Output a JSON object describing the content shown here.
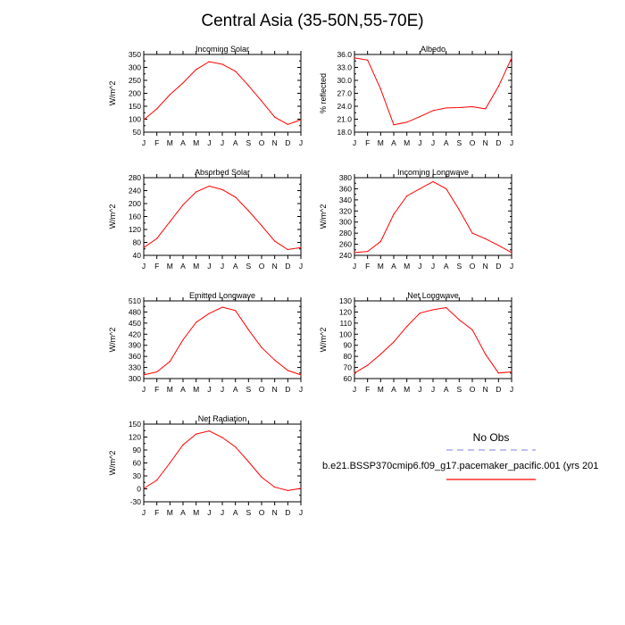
{
  "page": {
    "title": "Central Asia (35-50N,55-70E)"
  },
  "legend": {
    "obs_label": "No Obs",
    "model_label": "b.e21.BSSP370cmip6.f09_g17.pacemaker_pacific.001 (yrs 201",
    "obs_color": "#9999ee",
    "model_color": "#ff0000"
  },
  "chart_data": [
    {
      "type": "line",
      "title": "Incoming Solar",
      "ylabel": "W/m^2",
      "categories": [
        "J",
        "F",
        "M",
        "A",
        "M",
        "J",
        "J",
        "A",
        "S",
        "O",
        "N",
        "D",
        "J"
      ],
      "ylim": [
        50,
        350
      ],
      "yticks": [
        "350",
        "300",
        "250",
        "200",
        "150",
        "100",
        "50"
      ],
      "series": [
        {
          "color": "#ff0000",
          "values": [
            98,
            140,
            195,
            240,
            292,
            322,
            312,
            285,
            230,
            170,
            108,
            80,
            98
          ]
        }
      ]
    },
    {
      "type": "line",
      "title": "Albedo",
      "ylabel": "% reflected",
      "categories": [
        "J",
        "F",
        "M",
        "A",
        "M",
        "J",
        "J",
        "A",
        "S",
        "O",
        "N",
        "D",
        "J"
      ],
      "ylim": [
        18.0,
        36.0
      ],
      "yticks": [
        "36.0",
        "33.0",
        "30.0",
        "27.0",
        "24.0",
        "21.0",
        "18.0"
      ],
      "series": [
        {
          "color": "#ff0000",
          "values": [
            35.2,
            34.7,
            28.0,
            19.7,
            20.3,
            21.6,
            23.0,
            23.6,
            23.7,
            23.9,
            23.4,
            28.6,
            35.2
          ]
        }
      ]
    },
    {
      "type": "line",
      "title": "Absorbed Solar",
      "ylabel": "W/m^2",
      "categories": [
        "J",
        "F",
        "M",
        "A",
        "M",
        "J",
        "J",
        "A",
        "S",
        "O",
        "N",
        "D",
        "J"
      ],
      "ylim": [
        40,
        280
      ],
      "yticks": [
        "280",
        "240",
        "200",
        "160",
        "120",
        "80",
        "40"
      ],
      "series": [
        {
          "color": "#ff0000",
          "values": [
            64,
            92,
            144,
            196,
            236,
            254,
            243,
            220,
            178,
            132,
            84,
            58,
            64
          ]
        }
      ]
    },
    {
      "type": "line",
      "title": "Incoming Longwave",
      "ylabel": "W/m^2",
      "categories": [
        "J",
        "F",
        "M",
        "A",
        "M",
        "J",
        "J",
        "A",
        "S",
        "O",
        "N",
        "D",
        "J"
      ],
      "ylim": [
        240,
        380
      ],
      "yticks": [
        "380",
        "360",
        "340",
        "320",
        "300",
        "280",
        "260",
        "240"
      ],
      "series": [
        {
          "color": "#ff0000",
          "values": [
            245,
            247,
            265,
            314,
            347,
            360,
            373,
            360,
            322,
            280,
            270,
            258,
            245
          ]
        }
      ]
    },
    {
      "type": "line",
      "title": "Emitted Longwave",
      "ylabel": "W/m^2",
      "categories": [
        "J",
        "F",
        "M",
        "A",
        "M",
        "J",
        "J",
        "A",
        "S",
        "O",
        "N",
        "D",
        "J"
      ],
      "ylim": [
        300,
        510
      ],
      "yticks": [
        "510",
        "480",
        "450",
        "420",
        "390",
        "360",
        "330",
        "300"
      ],
      "series": [
        {
          "color": "#ff0000",
          "values": [
            310,
            318,
            346,
            405,
            452,
            476,
            493,
            484,
            432,
            384,
            350,
            322,
            310
          ]
        }
      ]
    },
    {
      "type": "line",
      "title": "Net Longwave",
      "ylabel": "W/m^2",
      "categories": [
        "J",
        "F",
        "M",
        "A",
        "M",
        "J",
        "J",
        "A",
        "S",
        "O",
        "N",
        "D",
        "J"
      ],
      "ylim": [
        60,
        130
      ],
      "yticks": [
        "130",
        "120",
        "110",
        "100",
        "90",
        "80",
        "70",
        "60"
      ],
      "series": [
        {
          "color": "#ff0000",
          "values": [
            65,
            72,
            82,
            93,
            107,
            119,
            122,
            124,
            113,
            104,
            82,
            65,
            66
          ]
        }
      ]
    },
    {
      "type": "line",
      "title": "Net Radiation",
      "ylabel": "W/m^2",
      "categories": [
        "J",
        "F",
        "M",
        "A",
        "M",
        "J",
        "J",
        "A",
        "S",
        "O",
        "N",
        "D",
        "J"
      ],
      "ylim": [
        -30,
        150
      ],
      "yticks": [
        "150",
        "120",
        "90",
        "60",
        "30",
        "0",
        "-30"
      ],
      "series": [
        {
          "color": "#ff0000",
          "values": [
            1,
            20,
            60,
            102,
            127,
            134,
            119,
            97,
            63,
            27,
            4,
            -4,
            1
          ]
        }
      ]
    }
  ]
}
